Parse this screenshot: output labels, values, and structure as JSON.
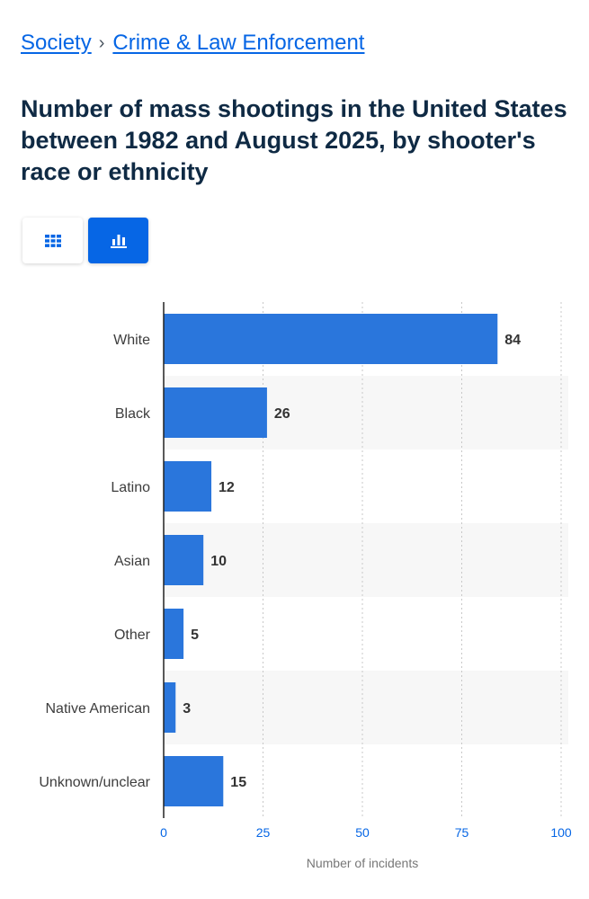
{
  "breadcrumb": {
    "items": [
      "Society",
      "Crime & Law Enforcement"
    ],
    "separator": "›"
  },
  "title": "Number of mass shootings in the United States between 1982 and August 2025, by shooter's race or ethnicity",
  "view_toggle": {
    "table_icon": "grid-icon",
    "chart_icon": "bar-chart-icon",
    "active": "chart"
  },
  "colors": {
    "accent": "#0666e5",
    "bar": "#2a76dc",
    "title": "#0f2a44"
  },
  "chart_data": {
    "type": "bar",
    "orientation": "horizontal",
    "categories": [
      "White",
      "Black",
      "Latino",
      "Asian",
      "Other",
      "Native American",
      "Unknown/unclear"
    ],
    "values": [
      84,
      26,
      12,
      10,
      5,
      3,
      15
    ],
    "xlabel": "Number of incidents",
    "ylabel": "",
    "xlim": [
      0,
      100
    ],
    "ticks": [
      0,
      25,
      50,
      75,
      100
    ],
    "grid": true,
    "data_labels": true
  }
}
